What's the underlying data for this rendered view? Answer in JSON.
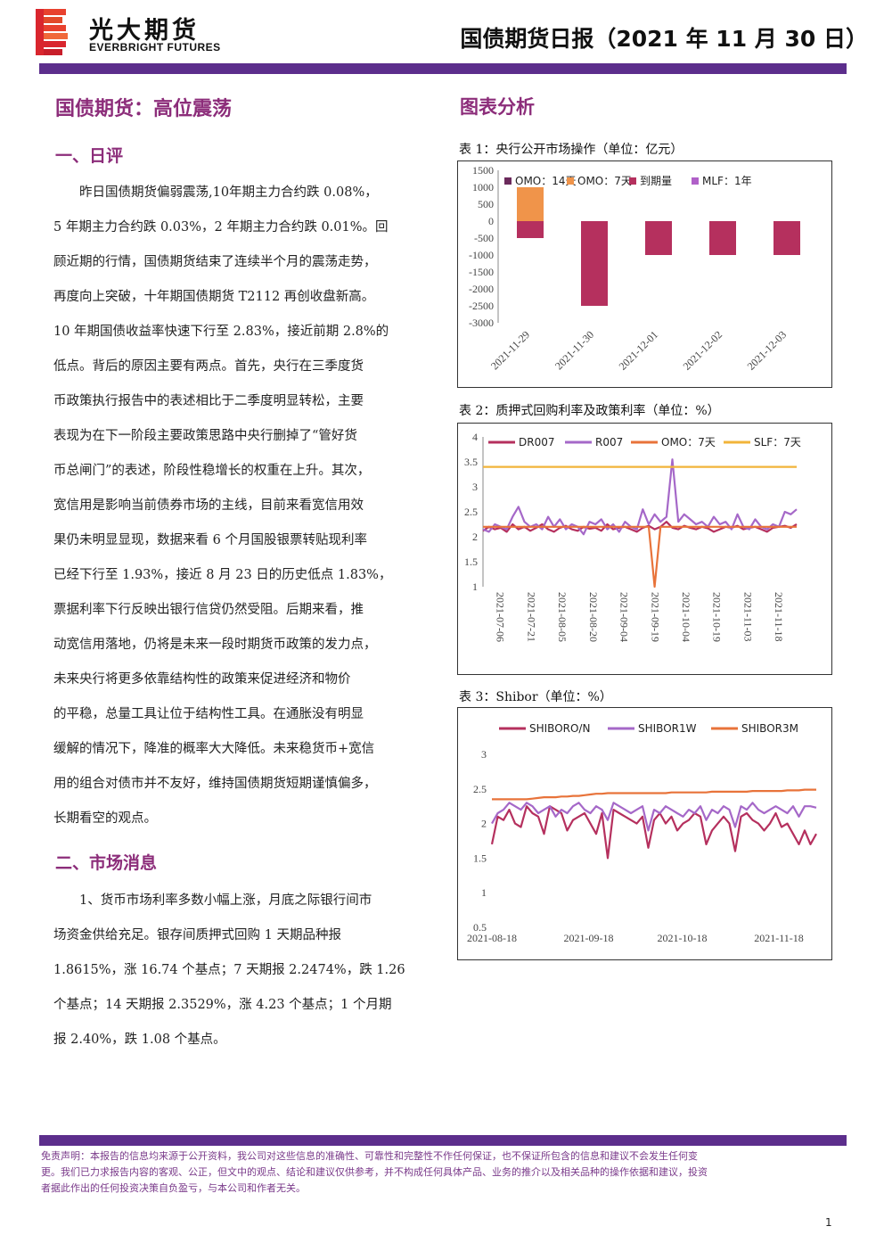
{
  "header": {
    "logo_cn": "光大期货",
    "logo_en": "EVERBRIGHT FUTURES",
    "report_title": "国债期货日报（2021 年 11 月 30 日）"
  },
  "left": {
    "main_title": "国债期货：高位震荡",
    "section1_title": "一、日评",
    "section1_lines": [
      "昨日国债期货偏弱震荡,10年期主力合约跌 0.08%，",
      "5 年期主力合约跌 0.03%，2 年期主力合约跌 0.01%。回",
      "顾近期的行情，国债期货结束了连续半个月的震荡走势，",
      "再度向上突破，十年期国债期货 T2112 再创收盘新高。",
      "10 年期国债收益率快速下行至 2.83%，接近前期 2.8%的",
      "低点。背后的原因主要有两点。首先，央行在三季度货",
      "币政策执行报告中的表述相比于二季度明显转松，主要",
      "表现为在下一阶段主要政策思路中央行删掉了“管好货",
      "币总闸门”的表述，阶段性稳增长的权重在上升。其次，",
      "宽信用是影响当前债券市场的主线，目前来看宽信用效",
      "果仍未明显显现，数据来看 6 个月国股银票转贴现利率",
      "已经下行至 1.93%，接近 8 月 23 日的历史低点 1.83%，",
      "票据利率下行反映出银行信贷仍然受阻。后期来看，推",
      "动宽信用落地，仍将是未来一段时期货币政策的发力点，",
      "未来央行将更多依靠结构性的政策来促进经济和物价",
      "的平稳，总量工具让位于结构性工具。在通胀没有明显",
      "缓解的情况下，降准的概率大大降低。未来稳货币+宽信",
      "用的组合对债市并不友好，维持国债期货短期谨慎偏多，",
      "长期看空的观点。"
    ],
    "section2_title": "二、市场消息",
    "section2_lines": [
      "1、货币市场利率多数小幅上涨，月底之际银行间市",
      "场资金供给充足。银存间质押式回购 1 天期品种报",
      "1.8615%，涨 16.74 个基点；7 天期报 2.2474%，跌 1.26",
      "个基点；14 天期报 2.3529%，涨 4.23 个基点；1 个月期",
      "报 2.40%，跌 1.08 个基点。"
    ]
  },
  "right": {
    "section_title": "图表分析",
    "caption1": "表 1：央行公开市场操作（单位：亿元）",
    "caption2": "表 2：质押式回购利率及政策利率（单位：%）",
    "caption3": "表 3：Shibor（单位：%）"
  },
  "chart_data": [
    {
      "type": "bar",
      "title": "表 1：央行公开市场操作（单位：亿元）",
      "categories": [
        "2021-11-29",
        "2021-11-30",
        "2021-12-01",
        "2021-12-02",
        "2021-12-03"
      ],
      "series": [
        {
          "name": "OMO：14天",
          "color": "#6b2a5c",
          "values": [
            0,
            0,
            0,
            0,
            0
          ]
        },
        {
          "name": "OMO：7天",
          "color": "#f0944a",
          "values": [
            1000,
            0,
            0,
            0,
            0
          ]
        },
        {
          "name": "到期量",
          "color": "#b5305e",
          "values": [
            -500,
            -2500,
            -1000,
            -1000,
            -1000
          ]
        },
        {
          "name": "MLF：1年",
          "color": "#b060c8",
          "values": [
            0,
            0,
            0,
            0,
            0
          ]
        }
      ],
      "ylim": [
        -3000,
        1500
      ],
      "yticks": [
        "1500",
        "1000",
        "500",
        "0",
        "-500",
        "-1000",
        "-1500",
        "-2000",
        "-2500",
        "-3000"
      ],
      "legend": "top"
    },
    {
      "type": "line",
      "title": "表 2：质押式回购利率及政策利率（单位：%）",
      "x_ticks": [
        "2021-07-06",
        "2021-07-21",
        "2021-08-05",
        "2021-08-20",
        "2021-09-04",
        "2021-09-19",
        "2021-10-04",
        "2021-10-19",
        "2021-11-03",
        "2021-11-18"
      ],
      "x_range": [
        "2021-07-01",
        "2021-11-30"
      ],
      "ylim": [
        1,
        4
      ],
      "yticks": [
        "4",
        "3.5",
        "3",
        "2.5",
        "2",
        "1.5",
        "1"
      ],
      "legend": "top",
      "series": [
        {
          "name": "DR007",
          "color": "#b5305e",
          "x_start": "2021-07-01",
          "x_end": "2021-11-30",
          "values": [
            2.12,
            2.2,
            2.15,
            2.18,
            2.1,
            2.25,
            2.15,
            2.2,
            2.12,
            2.18,
            2.25,
            2.15,
            2.1,
            2.18,
            2.22,
            2.15,
            2.12,
            2.2,
            2.16,
            2.18,
            2.12,
            2.25,
            2.15,
            2.18,
            2.2,
            2.15,
            2.1,
            2.18,
            2.22,
            2.15,
            2.2,
            2.3,
            2.18,
            2.15,
            2.22,
            2.18,
            2.15,
            2.2,
            2.17,
            2.1,
            2.15,
            2.2,
            2.18,
            2.22,
            2.15,
            2.18,
            2.2,
            2.15,
            2.1,
            2.18,
            2.2,
            2.22,
            2.18,
            2.25
          ]
        },
        {
          "name": "R007",
          "color": "#a568c8",
          "x_start": "2021-07-01",
          "x_end": "2021-11-30",
          "values": [
            2.15,
            2.1,
            2.25,
            2.2,
            2.15,
            2.4,
            2.6,
            2.3,
            2.2,
            2.25,
            2.15,
            2.4,
            2.2,
            2.35,
            2.15,
            2.25,
            2.2,
            2.05,
            2.3,
            2.25,
            2.35,
            2.15,
            2.25,
            2.1,
            2.3,
            2.2,
            2.15,
            2.55,
            2.25,
            2.45,
            2.3,
            2.4,
            3.55,
            2.3,
            2.45,
            2.35,
            2.25,
            2.3,
            2.2,
            2.4,
            2.25,
            2.3,
            2.15,
            2.45,
            2.2,
            2.15,
            2.35,
            2.2,
            2.15,
            2.25,
            2.2,
            2.5,
            2.45,
            2.55
          ]
        },
        {
          "name": "OMO：7天",
          "color": "#e8733a",
          "x_start": "2021-07-01",
          "x_end": "2021-11-30",
          "values": [
            2.2,
            2.2,
            2.2,
            2.2,
            2.2,
            2.2,
            2.2,
            2.2,
            2.2,
            2.2,
            2.2,
            2.2,
            2.2,
            2.2,
            2.2,
            2.2,
            2.2,
            2.2,
            2.2,
            2.2,
            2.2,
            2.2,
            2.2,
            2.2,
            2.2,
            2.2,
            2.2,
            2.2,
            2.2,
            1.0,
            2.2,
            2.2,
            2.2,
            2.2,
            2.2,
            2.2,
            2.2,
            2.2,
            2.2,
            2.2,
            2.2,
            2.2,
            2.2,
            2.2,
            2.2,
            2.2,
            2.2,
            2.2,
            2.2,
            2.2,
            2.2,
            2.2,
            2.2,
            2.2
          ]
        },
        {
          "name": "SLF：7天",
          "color": "#f2b43a",
          "x_start": "2021-07-01",
          "x_end": "2021-11-30",
          "values": [
            3.4,
            3.4,
            3.4,
            3.4,
            3.4,
            3.4,
            3.4,
            3.4,
            3.4,
            3.4,
            3.4,
            3.4,
            3.4,
            3.4,
            3.4,
            3.4,
            3.4,
            3.4,
            3.4,
            3.4,
            3.4,
            3.4,
            3.4,
            3.4,
            3.4,
            3.4,
            3.4,
            3.4,
            3.4,
            3.4,
            3.4,
            3.4,
            3.4,
            3.4,
            3.4,
            3.4,
            3.4,
            3.4,
            3.4,
            3.4,
            3.4,
            3.4,
            3.4,
            3.4,
            3.4,
            3.4,
            3.4,
            3.4,
            3.4,
            3.4,
            3.4,
            3.4,
            3.4,
            3.4
          ]
        }
      ]
    },
    {
      "type": "line",
      "title": "表 3：Shibor（单位：%）",
      "x_ticks": [
        "2021-08-18",
        "2021-09-18",
        "2021-10-18",
        "2021-11-18"
      ],
      "x_range": [
        "2021-08-18",
        "2021-11-30"
      ],
      "ylim": [
        0.5,
        3
      ],
      "yticks": [
        "3",
        "2.5",
        "2",
        "1.5",
        "1",
        "0.5"
      ],
      "legend": "top",
      "series": [
        {
          "name": "SHIBORO/N",
          "color": "#b5305e",
          "x_start": "2021-08-18",
          "x_end": "2021-11-30",
          "values": [
            1.7,
            2.1,
            2.05,
            2.2,
            2.0,
            1.95,
            2.25,
            2.15,
            2.1,
            1.85,
            2.25,
            2.2,
            2.15,
            1.9,
            2.05,
            2.1,
            2.15,
            2.0,
            1.85,
            2.15,
            1.5,
            2.2,
            2.15,
            2.1,
            2.05,
            2.0,
            2.1,
            1.65,
            2.05,
            2.15,
            2.0,
            2.1,
            1.9,
            2.0,
            2.05,
            2.15,
            2.1,
            1.7,
            1.9,
            2.0,
            2.1,
            2.0,
            1.6,
            2.1,
            2.15,
            2.05,
            2.0,
            1.9,
            2.0,
            2.15,
            1.95,
            2.0,
            1.85,
            1.7,
            1.9,
            1.7,
            1.85
          ]
        },
        {
          "name": "SHIBOR1W",
          "color": "#a568c8",
          "x_start": "2021-08-18",
          "x_end": "2021-11-30",
          "values": [
            2.0,
            2.15,
            2.2,
            2.3,
            2.25,
            2.2,
            2.3,
            2.25,
            2.15,
            2.2,
            2.25,
            2.1,
            2.2,
            2.15,
            2.25,
            2.3,
            2.2,
            2.15,
            2.25,
            2.2,
            2.05,
            2.3,
            2.25,
            2.2,
            2.15,
            2.2,
            2.25,
            1.9,
            2.2,
            2.15,
            2.25,
            2.2,
            2.15,
            2.1,
            2.2,
            2.15,
            2.25,
            2.05,
            2.2,
            2.15,
            2.25,
            2.2,
            1.95,
            2.25,
            2.2,
            2.3,
            2.2,
            2.15,
            2.2,
            2.25,
            2.2,
            2.15,
            2.25,
            2.1,
            2.25,
            2.25,
            2.23
          ]
        },
        {
          "name": "SHIBOR3M",
          "color": "#e8733a",
          "x_start": "2021-08-18",
          "x_end": "2021-11-30",
          "values": [
            2.35,
            2.35,
            2.35,
            2.35,
            2.35,
            2.35,
            2.35,
            2.36,
            2.37,
            2.38,
            2.38,
            2.38,
            2.39,
            2.39,
            2.4,
            2.4,
            2.41,
            2.42,
            2.43,
            2.43,
            2.44,
            2.44,
            2.44,
            2.44,
            2.44,
            2.44,
            2.44,
            2.44,
            2.44,
            2.44,
            2.44,
            2.45,
            2.45,
            2.45,
            2.45,
            2.45,
            2.45,
            2.45,
            2.46,
            2.46,
            2.46,
            2.46,
            2.46,
            2.46,
            2.46,
            2.47,
            2.47,
            2.47,
            2.47,
            2.47,
            2.47,
            2.48,
            2.48,
            2.48,
            2.49,
            2.49,
            2.49
          ]
        }
      ]
    }
  ],
  "footer": {
    "disclaimer_lines": [
      "免责声明：本报告的信息均来源于公开资料，我公司对这些信息的准确性、可靠性和完整性不作任何保证，也不保证所包含的信息和建议不会发生任何变",
      "更。我们已力求报告内容的客观、公正，但文中的观点、结论和建议仅供参考，并不构成任何具体产品、业务的推介以及相关品种的操作依据和建议，投资",
      "者据此作出的任何投资决策自负盈亏，与本公司和作者无关。"
    ],
    "page_number": "1"
  },
  "colors": {
    "brand_purple": "#5c2e8c",
    "title_magenta": "#8c2d7a",
    "logo_red": "#d9262e"
  }
}
